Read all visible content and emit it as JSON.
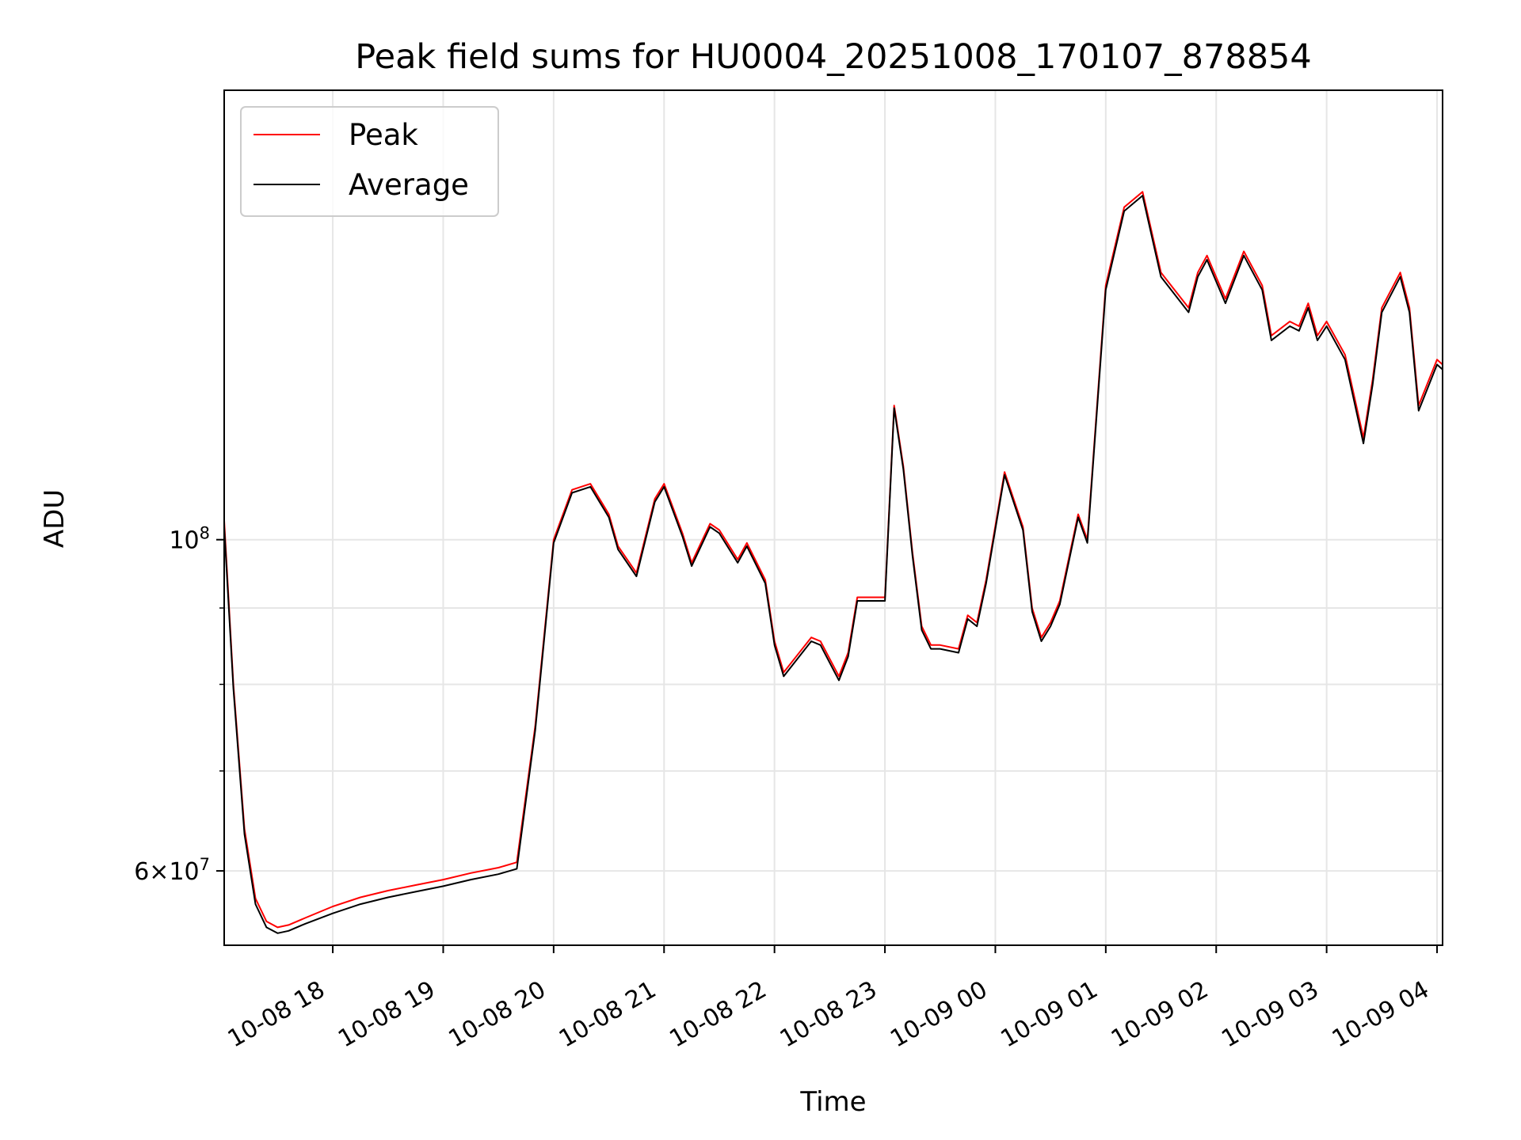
{
  "chart_data": {
    "type": "line",
    "title": "Peak field sums for HU0004_20251008_170107_878854",
    "xlabel": "Time",
    "ylabel": "ADU",
    "yscale": "log",
    "xlim": [
      "10-08 17:01",
      "10-09 04:03"
    ],
    "ylim": [
      53500000,
      200000000
    ],
    "grid": true,
    "legend_position": "upper-left",
    "x_ticks": [
      "10-08 18",
      "10-08 19",
      "10-08 20",
      "10-08 21",
      "10-08 22",
      "10-08 23",
      "10-09 00",
      "10-09 01",
      "10-09 02",
      "10-09 03",
      "10-09 04"
    ],
    "y_ticks": [
      {
        "value": 100000000,
        "base": "10",
        "exp": "8"
      },
      {
        "value": 60000000,
        "mantissa": "6",
        "base": "10",
        "exp": "7"
      }
    ],
    "colors": {
      "Peak": "#ff0000",
      "Average": "#000000"
    },
    "x": [
      "10-08 17:01",
      "10-08 17:06",
      "10-08 17:12",
      "10-08 17:18",
      "10-08 17:24",
      "10-08 17:30",
      "10-08 17:36",
      "10-08 17:45",
      "10-08 18:00",
      "10-08 18:15",
      "10-08 18:30",
      "10-08 18:45",
      "10-08 19:00",
      "10-08 19:15",
      "10-08 19:30",
      "10-08 19:40",
      "10-08 19:50",
      "10-08 20:00",
      "10-08 20:10",
      "10-08 20:20",
      "10-08 20:30",
      "10-08 20:35",
      "10-08 20:45",
      "10-08 20:55",
      "10-08 21:00",
      "10-08 21:10",
      "10-08 21:15",
      "10-08 21:25",
      "10-08 21:30",
      "10-08 21:40",
      "10-08 21:45",
      "10-08 21:55",
      "10-08 22:00",
      "10-08 22:05",
      "10-08 22:20",
      "10-08 22:25",
      "10-08 22:35",
      "10-08 22:40",
      "10-08 22:45",
      "10-08 23:00",
      "10-08 23:05",
      "10-08 23:10",
      "10-08 23:15",
      "10-08 23:20",
      "10-08 23:25",
      "10-08 23:30",
      "10-08 23:40",
      "10-08 23:45",
      "10-08 23:50",
      "10-08 23:55",
      "10-09 00:05",
      "10-09 00:15",
      "10-09 00:20",
      "10-09 00:25",
      "10-09 00:30",
      "10-09 00:35",
      "10-09 00:45",
      "10-09 00:50",
      "10-09 01:00",
      "10-09 01:10",
      "10-09 01:20",
      "10-09 01:30",
      "10-09 01:45",
      "10-09 01:50",
      "10-09 01:55",
      "10-09 02:05",
      "10-09 02:15",
      "10-09 02:25",
      "10-09 02:30",
      "10-09 02:40",
      "10-09 02:45",
      "10-09 02:50",
      "10-09 02:55",
      "10-09 03:00",
      "10-09 03:10",
      "10-09 03:20",
      "10-09 03:25",
      "10-09 03:30",
      "10-09 03:40",
      "10-09 03:45",
      "10-09 03:50",
      "10-09 04:00",
      "10-09 04:03"
    ],
    "series": [
      {
        "name": "Peak",
        "values": [
          103000000,
          80000000,
          64000000,
          57500000,
          55500000,
          55000000,
          55200000,
          55800000,
          56800000,
          57600000,
          58200000,
          58700000,
          59200000,
          59800000,
          60300000,
          60800000,
          75000000,
          100000000,
          108000000,
          109000000,
          104000000,
          99000000,
          95000000,
          106500000,
          109000000,
          101000000,
          96500000,
          102500000,
          101500000,
          97000000,
          99500000,
          94000000,
          85500000,
          81500000,
          86000000,
          85500000,
          81000000,
          84000000,
          91500000,
          91500000,
          123000000,
          112000000,
          98000000,
          87500000,
          85000000,
          85000000,
          84500000,
          89000000,
          88000000,
          94000000,
          111000000,
          102000000,
          90000000,
          86000000,
          88000000,
          91000000,
          104000000,
          100000000,
          148000000,
          167000000,
          171000000,
          151000000,
          143000000,
          151000000,
          155000000,
          145000000,
          156000000,
          148000000,
          137000000,
          140000000,
          139000000,
          144000000,
          137000000,
          140000000,
          133000000,
          117000000,
          128000000,
          143000000,
          151000000,
          143000000,
          123000000,
          132000000,
          131000000
        ]
      },
      {
        "name": "Average",
        "values": [
          102000000,
          79500000,
          63500000,
          57000000,
          55000000,
          54500000,
          54700000,
          55300000,
          56200000,
          57000000,
          57600000,
          58100000,
          58600000,
          59200000,
          59700000,
          60200000,
          74500000,
          99500000,
          107500000,
          108500000,
          103500000,
          98500000,
          94500000,
          106000000,
          108500000,
          100500000,
          96000000,
          102000000,
          101000000,
          96500000,
          99000000,
          93500000,
          85000000,
          81000000,
          85500000,
          85000000,
          80500000,
          83500000,
          91000000,
          91000000,
          122500000,
          111500000,
          97500000,
          87000000,
          84500000,
          84500000,
          84000000,
          88500000,
          87500000,
          93500000,
          110500000,
          101500000,
          89500000,
          85500000,
          87500000,
          90500000,
          103500000,
          99500000,
          147000000,
          166000000,
          170000000,
          150000000,
          142000000,
          150000000,
          154000000,
          144000000,
          155000000,
          147000000,
          136000000,
          139000000,
          138000000,
          143000000,
          136000000,
          139000000,
          132000000,
          116000000,
          127000000,
          142000000,
          150000000,
          142000000,
          122000000,
          131000000,
          130000000
        ]
      }
    ]
  }
}
